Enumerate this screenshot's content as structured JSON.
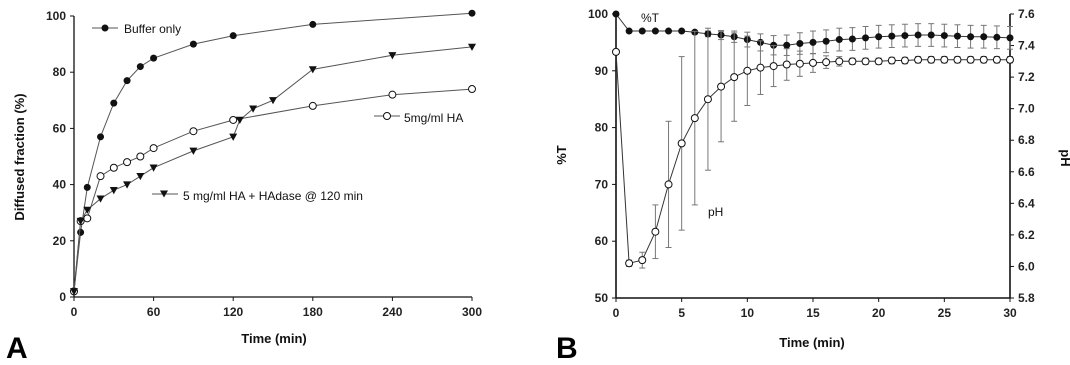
{
  "chart_data": [
    {
      "panel": "A",
      "type": "line",
      "xlabel": "Time (min)",
      "ylabel": "Diffused fraction (%)",
      "xlim": [
        0,
        300
      ],
      "ylim": [
        0,
        100
      ],
      "xticks": [
        "0",
        "60",
        "120",
        "180",
        "240",
        "300"
      ],
      "yticks": [
        "0",
        "20",
        "40",
        "60",
        "80",
        "100"
      ],
      "grid": false,
      "series": [
        {
          "name": "Buffer only",
          "marker": "filled-circle",
          "x": [
            0,
            5,
            10,
            20,
            30,
            40,
            50,
            60,
            90,
            120,
            180,
            300
          ],
          "y": [
            2,
            23,
            39,
            57,
            69,
            77,
            82,
            85,
            90,
            93,
            97,
            101
          ]
        },
        {
          "name": "5mg/ml HA",
          "marker": "open-circle",
          "x": [
            0,
            5,
            10,
            20,
            30,
            40,
            50,
            60,
            90,
            120,
            180,
            240,
            300
          ],
          "y": [
            2,
            27,
            28,
            43,
            46,
            48,
            50,
            53,
            59,
            63,
            68,
            72,
            74
          ]
        },
        {
          "name": "5 mg/ml HA + HAdase @ 120 min",
          "marker": "filled-triangle-down",
          "x": [
            0,
            5,
            10,
            20,
            30,
            40,
            50,
            60,
            90,
            120,
            125,
            135,
            150,
            180,
            240,
            300
          ],
          "y": [
            2,
            27,
            31,
            35,
            38,
            40,
            43,
            46,
            52,
            57,
            63,
            67,
            70,
            81,
            86,
            89
          ]
        }
      ]
    },
    {
      "panel": "B",
      "type": "line",
      "xlabel": "Time (min)",
      "ylabel": "%T",
      "y2label": "pH",
      "xlim": [
        0,
        30
      ],
      "ylim": [
        50,
        100
      ],
      "y2lim": [
        5.8,
        7.6
      ],
      "xticks": [
        "0",
        "5",
        "10",
        "15",
        "20",
        "25",
        "30"
      ],
      "yticks": [
        "50",
        "60",
        "70",
        "80",
        "90",
        "100"
      ],
      "y2ticks": [
        "5.8",
        "6.0",
        "6.2",
        "6.4",
        "6.6",
        "6.8",
        "7.0",
        "7.2",
        "7.4",
        "7.6"
      ],
      "grid": false,
      "series": [
        {
          "name": "%T",
          "axis": "left",
          "marker": "filled-circle",
          "x": [
            0,
            1,
            2,
            3,
            4,
            5,
            6,
            7,
            8,
            9,
            10,
            11,
            12,
            13,
            14,
            15,
            16,
            17,
            18,
            19,
            20,
            21,
            22,
            23,
            24,
            25,
            26,
            27,
            28,
            29,
            30
          ],
          "y": [
            100,
            97,
            97,
            97,
            97,
            97,
            96.8,
            96.5,
            96.3,
            96,
            95.5,
            95,
            94.5,
            94.5,
            94.8,
            95,
            95.2,
            95.5,
            95.6,
            95.8,
            96,
            96.1,
            96.2,
            96.3,
            96.3,
            96.2,
            96.1,
            96,
            96,
            95.9,
            95.8
          ],
          "error": [
            0,
            0,
            0,
            0,
            0,
            0,
            0.3,
            0.5,
            0.8,
            1,
            1.3,
            1.5,
            1.7,
            1.8,
            1.9,
            2,
            2,
            2,
            2,
            2,
            2,
            2,
            2,
            2,
            2,
            2,
            2,
            2,
            2,
            2,
            2
          ]
        },
        {
          "name": "pH",
          "axis": "right",
          "marker": "open-circle",
          "x": [
            0,
            1,
            2,
            3,
            4,
            5,
            6,
            7,
            8,
            9,
            10,
            11,
            12,
            13,
            14,
            15,
            16,
            17,
            18,
            19,
            20,
            21,
            22,
            23,
            24,
            25,
            26,
            27,
            28,
            29,
            30
          ],
          "y": [
            7.36,
            6.02,
            6.04,
            6.22,
            6.52,
            6.78,
            6.94,
            7.06,
            7.14,
            7.2,
            7.24,
            7.26,
            7.27,
            7.28,
            7.285,
            7.29,
            7.295,
            7.3,
            7.3,
            7.3,
            7.3,
            7.305,
            7.305,
            7.31,
            7.31,
            7.31,
            7.31,
            7.31,
            7.31,
            7.31,
            7.31
          ],
          "error": [
            0,
            0.02,
            0.05,
            0.17,
            0.4,
            0.55,
            0.55,
            0.45,
            0.35,
            0.28,
            0.22,
            0.17,
            0.13,
            0.1,
            0.08,
            0.06,
            0.04,
            0.03,
            0.02,
            0.02,
            0.02,
            0.02,
            0.02,
            0.02,
            0.02,
            0.02,
            0.02,
            0.02,
            0.02,
            0.02,
            0.02
          ]
        }
      ]
    }
  ],
  "figure": {
    "panel_a_letter": "A",
    "panel_b_letter": "B",
    "annotations_a": {
      "buffer_only": "Buffer only",
      "ha": "5mg/ml HA",
      "ha_hadase": "5 mg/ml HA + HAdase @ 120 min"
    },
    "annotations_b": {
      "pct_t": "%T",
      "ph": "pH"
    }
  }
}
